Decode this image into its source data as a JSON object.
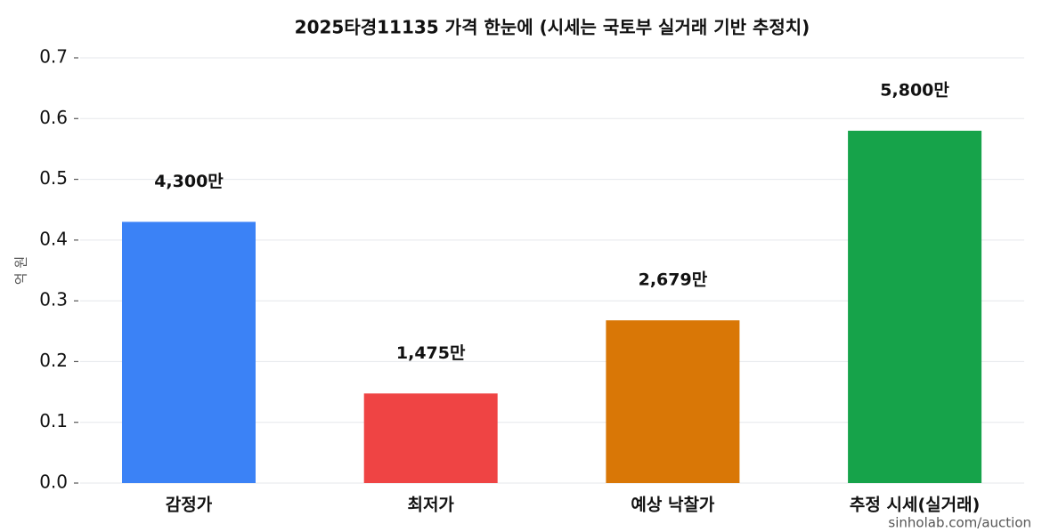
{
  "chart_data": {
    "type": "bar",
    "title": "2025타경11135 가격 한눈에 (시세는 국토부 실거래 기반 추정치)",
    "y_label": "억 원",
    "categories": [
      "감정가",
      "최저가",
      "예상 낙찰가",
      "추정 시세(실거래)"
    ],
    "values": [
      0.43,
      0.1475,
      0.2679,
      0.58
    ],
    "value_labels": [
      "4,300만",
      "1,475만",
      "2,679만",
      "5,800만"
    ],
    "colors": [
      "#3b82f6",
      "#ef4444",
      "#d97706",
      "#16a34a"
    ],
    "ylim": [
      0,
      0.7
    ],
    "yticks": [
      {
        "value": 0,
        "label": "0.0"
      },
      0.1,
      0.2,
      0.3,
      0.4,
      0.5,
      0.6,
      0.7
    ],
    "grid": true,
    "watermark": "sinholab.com/auction"
  }
}
